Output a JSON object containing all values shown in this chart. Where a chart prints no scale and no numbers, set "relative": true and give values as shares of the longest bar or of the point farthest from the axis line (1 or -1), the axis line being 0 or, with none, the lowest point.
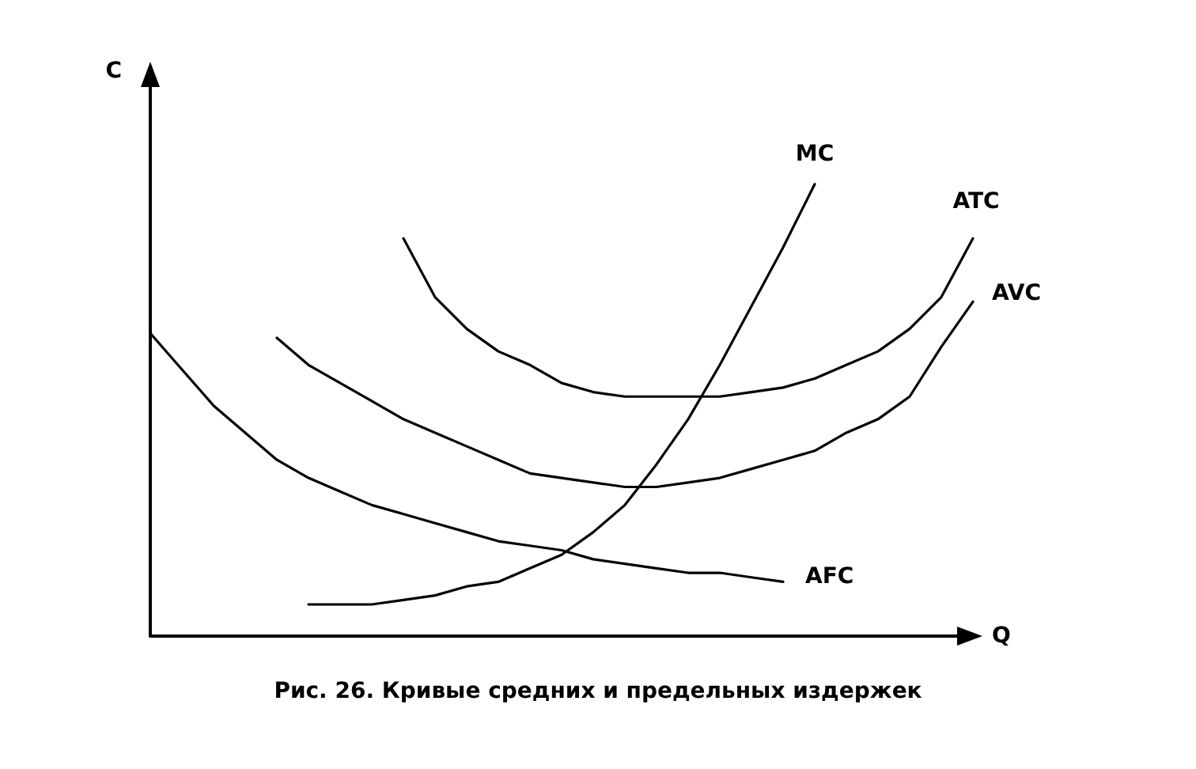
{
  "chart_data": {
    "type": "line",
    "relative": true,
    "xlabel": "Q",
    "ylabel": "C",
    "legend": false,
    "grid": false,
    "marker": "none",
    "line_style": "solid",
    "categories": [
      null,
      null,
      null,
      null,
      null,
      null,
      null,
      null,
      null,
      null,
      null,
      null,
      null,
      null,
      null,
      null,
      null,
      null,
      null,
      null,
      null,
      null,
      null,
      null,
      null,
      null,
      null
    ],
    "series": [
      {
        "name": "MC",
        "color": "#000000",
        "values": [
          null,
          null,
          null,
          null,
          null,
          0.07,
          0.07,
          0.07,
          0.08,
          0.09,
          0.11,
          0.12,
          0.15,
          0.18,
          0.23,
          0.29,
          0.38,
          0.48,
          0.6,
          0.73,
          0.86,
          1,
          null,
          null,
          null,
          null,
          null
        ]
      },
      {
        "name": "ATC",
        "color": "#000000",
        "values": [
          null,
          null,
          null,
          null,
          null,
          null,
          null,
          null,
          0.88,
          0.75,
          0.68,
          0.63,
          0.6,
          0.56,
          0.54,
          0.53,
          0.53,
          0.53,
          0.53,
          0.54,
          0.55,
          0.57,
          0.6,
          0.63,
          0.68,
          0.75,
          0.88
        ]
      },
      {
        "name": "AVC",
        "color": "#000000",
        "values": [
          null,
          null,
          null,
          null,
          0.66,
          0.6,
          0.56,
          0.52,
          0.48,
          0.45,
          0.42,
          0.39,
          0.36,
          0.35,
          0.34,
          0.33,
          0.33,
          0.34,
          0.35,
          0.37,
          0.39,
          0.41,
          0.45,
          0.48,
          0.53,
          0.64,
          0.74
        ]
      },
      {
        "name": "AFC",
        "color": "#000000",
        "values": [
          0.67,
          0.59,
          0.51,
          0.45,
          0.39,
          0.35,
          0.32,
          0.29,
          0.27,
          0.25,
          0.23,
          0.21,
          0.2,
          0.19,
          0.17,
          0.16,
          0.15,
          0.14,
          0.14,
          0.13,
          0.12,
          null,
          null,
          null,
          null,
          null,
          null
        ]
      }
    ],
    "annotations": [
      "Рис. 26. Кривые средних и предельных издержек"
    ]
  }
}
